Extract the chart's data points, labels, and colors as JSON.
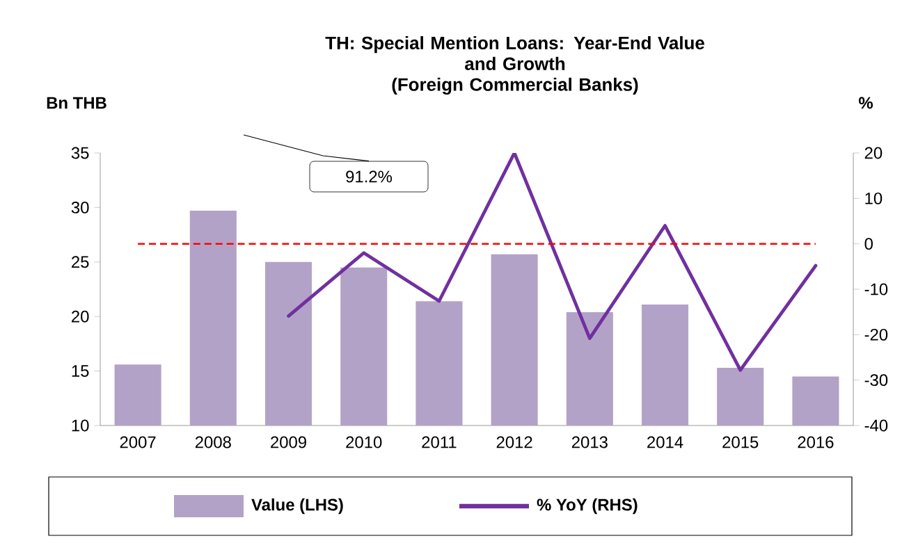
{
  "chart_data": {
    "type": "bar",
    "title": "TH: Special Mention Loans: Year-End Value\nand Growth\n(Foreign Commercial Banks)",
    "ylabel": "Bn THB",
    "y2label": "%",
    "categories": [
      "2007",
      "2008",
      "2009",
      "2010",
      "2011",
      "2012",
      "2013",
      "2014",
      "2015",
      "2016"
    ],
    "series": [
      {
        "name": "Value (LHS)",
        "color": "#b3a2c7",
        "values": [
          15.6,
          29.7,
          25.0,
          24.5,
          21.4,
          25.7,
          20.4,
          21.1,
          15.3,
          14.5
        ]
      },
      {
        "name": "% YoY (RHS)",
        "type": "line",
        "axis": "y2",
        "color": "#7030a0",
        "values": [
          null,
          null,
          -15.9,
          -2,
          -12.6,
          20,
          -20.8,
          4,
          -27.8,
          -4.8
        ]
      }
    ],
    "ylim": [
      10,
      35
    ],
    "yticks": [
      10,
      15,
      20,
      25,
      30,
      35
    ],
    "y2lim": [
      -40,
      20
    ],
    "y2ticks": [
      -40,
      -30,
      -20,
      -10,
      0,
      10,
      20
    ],
    "ref_lines": [
      {
        "axis": "y2",
        "value": 0,
        "color": "#ff0000",
        "line_style": "dashed"
      }
    ],
    "annotations": [
      "91.2%"
    ],
    "legend": "bottom",
    "grid": false
  }
}
